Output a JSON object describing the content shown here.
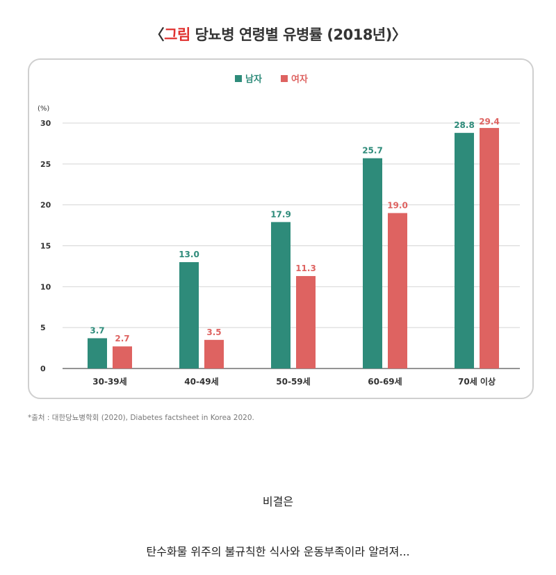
{
  "title": {
    "open": "〈",
    "accent": "그림",
    "rest": " 당뇨병 연령별 유병률 (2018년)〉"
  },
  "source": "*출처 : 대한당뇨병학회 (2020), Diabetes factsheet in Korea 2020.",
  "caption1": "비결은",
  "caption2": "탄수화물 위주의 불규칙한 식사와 운동부족이라 알려져...",
  "chart_data": {
    "type": "bar",
    "categories": [
      "30-39세",
      "40-49세",
      "50-59세",
      "60-69세",
      "70세 이상"
    ],
    "series": [
      {
        "name": "남자",
        "color": "#2e8b7a",
        "values": [
          3.7,
          13.0,
          17.9,
          25.7,
          28.8
        ]
      },
      {
        "name": "여자",
        "color": "#de6361",
        "values": [
          2.7,
          3.5,
          11.3,
          19.0,
          29.4
        ]
      }
    ],
    "data_labels": [
      [
        "3.7",
        "13.0",
        "17.9",
        "25.7",
        "28.8"
      ],
      [
        "2.7",
        "3.5",
        "11.3",
        "19.0",
        "29.4"
      ]
    ],
    "yunit": "(%)",
    "ylim": [
      0,
      30
    ],
    "yticks": [
      0,
      5,
      10,
      15,
      20,
      25,
      30
    ],
    "grid": true,
    "legend": "top-center"
  }
}
